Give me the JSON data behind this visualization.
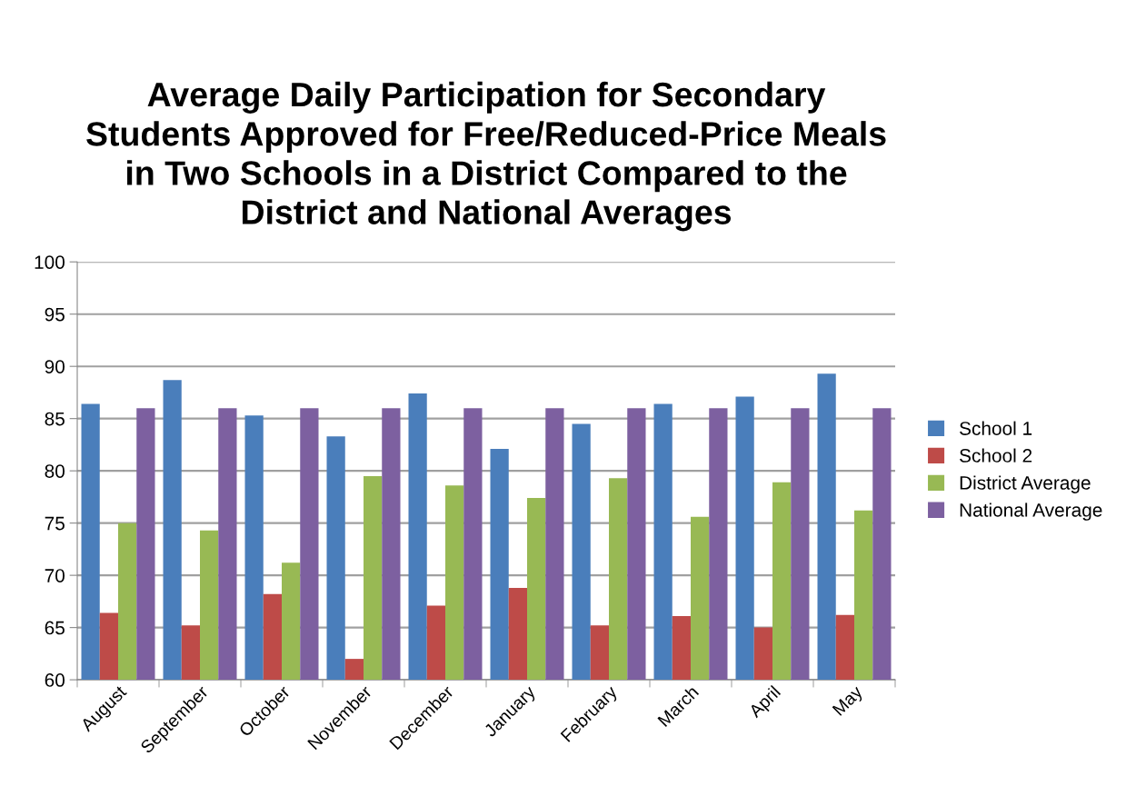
{
  "chart_data": {
    "type": "bar",
    "title": "Average Daily Participation for Secondary\nStudents Approved for Free/Reduced-Price Meals\nin Two Schools in a District Compared to the\nDistrict and National Averages",
    "categories": [
      "August",
      "September",
      "October",
      "November",
      "December",
      "January",
      "February",
      "March",
      "April",
      "May"
    ],
    "series": [
      {
        "name": "School 1",
        "color": "#4a7ebb",
        "values": [
          86.4,
          88.7,
          85.3,
          83.3,
          87.4,
          82.1,
          84.5,
          86.4,
          87.1,
          89.3
        ]
      },
      {
        "name": "School 2",
        "color": "#be4b48",
        "values": [
          66.4,
          65.2,
          68.2,
          62.0,
          67.1,
          68.8,
          65.2,
          66.1,
          65.0,
          66.2
        ]
      },
      {
        "name": "District Average",
        "color": "#98b954",
        "values": [
          75.0,
          74.3,
          71.2,
          79.5,
          78.6,
          77.4,
          79.3,
          75.6,
          78.9,
          76.2
        ]
      },
      {
        "name": "National Average",
        "color": "#7d60a0",
        "values": [
          86.0,
          86.0,
          86.0,
          86.0,
          86.0,
          86.0,
          86.0,
          86.0,
          86.0,
          86.0
        ]
      }
    ],
    "ylim": [
      60,
      100
    ],
    "yticks": [
      60,
      65,
      70,
      75,
      80,
      85,
      90,
      95,
      100
    ],
    "grid": "y",
    "legend": "right"
  }
}
